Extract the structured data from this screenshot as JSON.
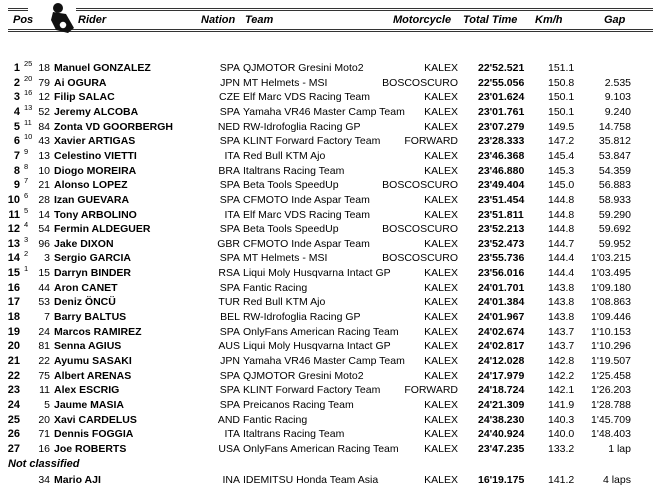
{
  "header": {
    "pos": "Pos",
    "rider": "Rider",
    "nation": "Nation",
    "team": "Team",
    "motorcycle": "Motorcycle",
    "total_time": "Total Time",
    "kmh": "Km/h",
    "gap": "Gap",
    "logo_icon": "motorcycle-rider-icon"
  },
  "rows": [
    {
      "pos": "1",
      "pts": "25",
      "num": "18",
      "name": "Manuel GONZALEZ",
      "nat": "SPA",
      "team": "QJMOTOR Gresini Moto2",
      "moto": "KALEX",
      "time": "22'52.521",
      "kmh": "151.1",
      "gap": ""
    },
    {
      "pos": "2",
      "pts": "20",
      "num": "79",
      "name": "Ai OGURA",
      "nat": "JPN",
      "team": "MT Helmets - MSI",
      "moto": "BOSCOSCURO",
      "time": "22'55.056",
      "kmh": "150.8",
      "gap": "2.535"
    },
    {
      "pos": "3",
      "pts": "16",
      "num": "12",
      "name": "Filip SALAC",
      "nat": "CZE",
      "team": "Elf Marc VDS Racing Team",
      "moto": "KALEX",
      "time": "23'01.624",
      "kmh": "150.1",
      "gap": "9.103"
    },
    {
      "pos": "4",
      "pts": "13",
      "num": "52",
      "name": "Jeremy ALCOBA",
      "nat": "SPA",
      "team": "Yamaha VR46 Master Camp Team",
      "moto": "KALEX",
      "time": "23'01.761",
      "kmh": "150.1",
      "gap": "9.240"
    },
    {
      "pos": "5",
      "pts": "11",
      "num": "84",
      "name": "Zonta VD GOORBERGH",
      "nat": "NED",
      "team": "RW-Idrofoglia Racing GP",
      "moto": "KALEX",
      "time": "23'07.279",
      "kmh": "149.5",
      "gap": "14.758"
    },
    {
      "pos": "6",
      "pts": "10",
      "num": "43",
      "name": "Xavier ARTIGAS",
      "nat": "SPA",
      "team": "KLINT Forward Factory Team",
      "moto": "FORWARD",
      "time": "23'28.333",
      "kmh": "147.2",
      "gap": "35.812"
    },
    {
      "pos": "7",
      "pts": "9",
      "num": "13",
      "name": "Celestino VIETTI",
      "nat": "ITA",
      "team": "Red Bull KTM Ajo",
      "moto": "KALEX",
      "time": "23'46.368",
      "kmh": "145.4",
      "gap": "53.847"
    },
    {
      "pos": "8",
      "pts": "8",
      "num": "10",
      "name": "Diogo MOREIRA",
      "nat": "BRA",
      "team": "Italtrans Racing Team",
      "moto": "KALEX",
      "time": "23'46.880",
      "kmh": "145.3",
      "gap": "54.359"
    },
    {
      "pos": "9",
      "pts": "7",
      "num": "21",
      "name": "Alonso LOPEZ",
      "nat": "SPA",
      "team": "Beta Tools SpeedUp",
      "moto": "BOSCOSCURO",
      "time": "23'49.404",
      "kmh": "145.0",
      "gap": "56.883"
    },
    {
      "pos": "10",
      "pts": "6",
      "num": "28",
      "name": "Izan GUEVARA",
      "nat": "SPA",
      "team": "CFMOTO Inde Aspar Team",
      "moto": "KALEX",
      "time": "23'51.454",
      "kmh": "144.8",
      "gap": "58.933"
    },
    {
      "pos": "11",
      "pts": "5",
      "num": "14",
      "name": "Tony ARBOLINO",
      "nat": "ITA",
      "team": "Elf Marc VDS Racing Team",
      "moto": "KALEX",
      "time": "23'51.811",
      "kmh": "144.8",
      "gap": "59.290"
    },
    {
      "pos": "12",
      "pts": "4",
      "num": "54",
      "name": "Fermin ALDEGUER",
      "nat": "SPA",
      "team": "Beta Tools SpeedUp",
      "moto": "BOSCOSCURO",
      "time": "23'52.213",
      "kmh": "144.8",
      "gap": "59.692"
    },
    {
      "pos": "13",
      "pts": "3",
      "num": "96",
      "name": "Jake DIXON",
      "nat": "GBR",
      "team": "CFMOTO Inde Aspar Team",
      "moto": "KALEX",
      "time": "23'52.473",
      "kmh": "144.7",
      "gap": "59.952"
    },
    {
      "pos": "14",
      "pts": "2",
      "num": "3",
      "name": "Sergio GARCIA",
      "nat": "SPA",
      "team": "MT Helmets - MSI",
      "moto": "BOSCOSCURO",
      "time": "23'55.736",
      "kmh": "144.4",
      "gap": "1'03.215"
    },
    {
      "pos": "15",
      "pts": "1",
      "num": "15",
      "name": "Darryn BINDER",
      "nat": "RSA",
      "team": "Liqui Moly Husqvarna Intact GP",
      "moto": "KALEX",
      "time": "23'56.016",
      "kmh": "144.4",
      "gap": "1'03.495"
    },
    {
      "pos": "16",
      "pts": "",
      "num": "44",
      "name": "Aron CANET",
      "nat": "SPA",
      "team": "Fantic Racing",
      "moto": "KALEX",
      "time": "24'01.701",
      "kmh": "143.8",
      "gap": "1'09.180"
    },
    {
      "pos": "17",
      "pts": "",
      "num": "53",
      "name": "Deniz ÖNCÜ",
      "nat": "TUR",
      "team": "Red Bull KTM Ajo",
      "moto": "KALEX",
      "time": "24'01.384",
      "kmh": "143.8",
      "gap": "1'08.863"
    },
    {
      "pos": "18",
      "pts": "",
      "num": "7",
      "name": "Barry BALTUS",
      "nat": "BEL",
      "team": "RW-Idrofoglia Racing GP",
      "moto": "KALEX",
      "time": "24'01.967",
      "kmh": "143.8",
      "gap": "1'09.446"
    },
    {
      "pos": "19",
      "pts": "",
      "num": "24",
      "name": "Marcos RAMIREZ",
      "nat": "SPA",
      "team": "OnlyFans American Racing Team",
      "moto": "KALEX",
      "time": "24'02.674",
      "kmh": "143.7",
      "gap": "1'10.153"
    },
    {
      "pos": "20",
      "pts": "",
      "num": "81",
      "name": "Senna AGIUS",
      "nat": "AUS",
      "team": "Liqui Moly Husqvarna Intact GP",
      "moto": "KALEX",
      "time": "24'02.817",
      "kmh": "143.7",
      "gap": "1'10.296"
    },
    {
      "pos": "21",
      "pts": "",
      "num": "22",
      "name": "Ayumu SASAKI",
      "nat": "JPN",
      "team": "Yamaha VR46 Master Camp Team",
      "moto": "KALEX",
      "time": "24'12.028",
      "kmh": "142.8",
      "gap": "1'19.507"
    },
    {
      "pos": "22",
      "pts": "",
      "num": "75",
      "name": "Albert ARENAS",
      "nat": "SPA",
      "team": "QJMOTOR Gresini Moto2",
      "moto": "KALEX",
      "time": "24'17.979",
      "kmh": "142.2",
      "gap": "1'25.458"
    },
    {
      "pos": "23",
      "pts": "",
      "num": "11",
      "name": "Alex ESCRIG",
      "nat": "SPA",
      "team": "KLINT Forward Factory Team",
      "moto": "FORWARD",
      "time": "24'18.724",
      "kmh": "142.1",
      "gap": "1'26.203"
    },
    {
      "pos": "24",
      "pts": "",
      "num": "5",
      "name": "Jaume MASIA",
      "nat": "SPA",
      "team": "Preicanos Racing Team",
      "moto": "KALEX",
      "time": "24'21.309",
      "kmh": "141.9",
      "gap": "1'28.788"
    },
    {
      "pos": "25",
      "pts": "",
      "num": "20",
      "name": "Xavi CARDELUS",
      "nat": "AND",
      "team": "Fantic Racing",
      "moto": "KALEX",
      "time": "24'38.230",
      "kmh": "140.3",
      "gap": "1'45.709"
    },
    {
      "pos": "26",
      "pts": "",
      "num": "71",
      "name": "Dennis FOGGIA",
      "nat": "ITA",
      "team": "Italtrans Racing Team",
      "moto": "KALEX",
      "time": "24'40.924",
      "kmh": "140.0",
      "gap": "1'48.403"
    },
    {
      "pos": "27",
      "pts": "",
      "num": "16",
      "name": "Joe ROBERTS",
      "nat": "USA",
      "team": "OnlyFans American Racing Team",
      "moto": "KALEX",
      "time": "23'47.235",
      "kmh": "133.2",
      "gap": "1 lap"
    }
  ],
  "not_classified_label": "Not classified",
  "not_classified": [
    {
      "pos": "",
      "pts": "",
      "num": "34",
      "name": "Mario AJI",
      "nat": "INA",
      "team": "IDEMITSU Honda Team Asia",
      "moto": "KALEX",
      "time": "16'19.175",
      "kmh": "141.2",
      "gap": "4 laps"
    }
  ]
}
